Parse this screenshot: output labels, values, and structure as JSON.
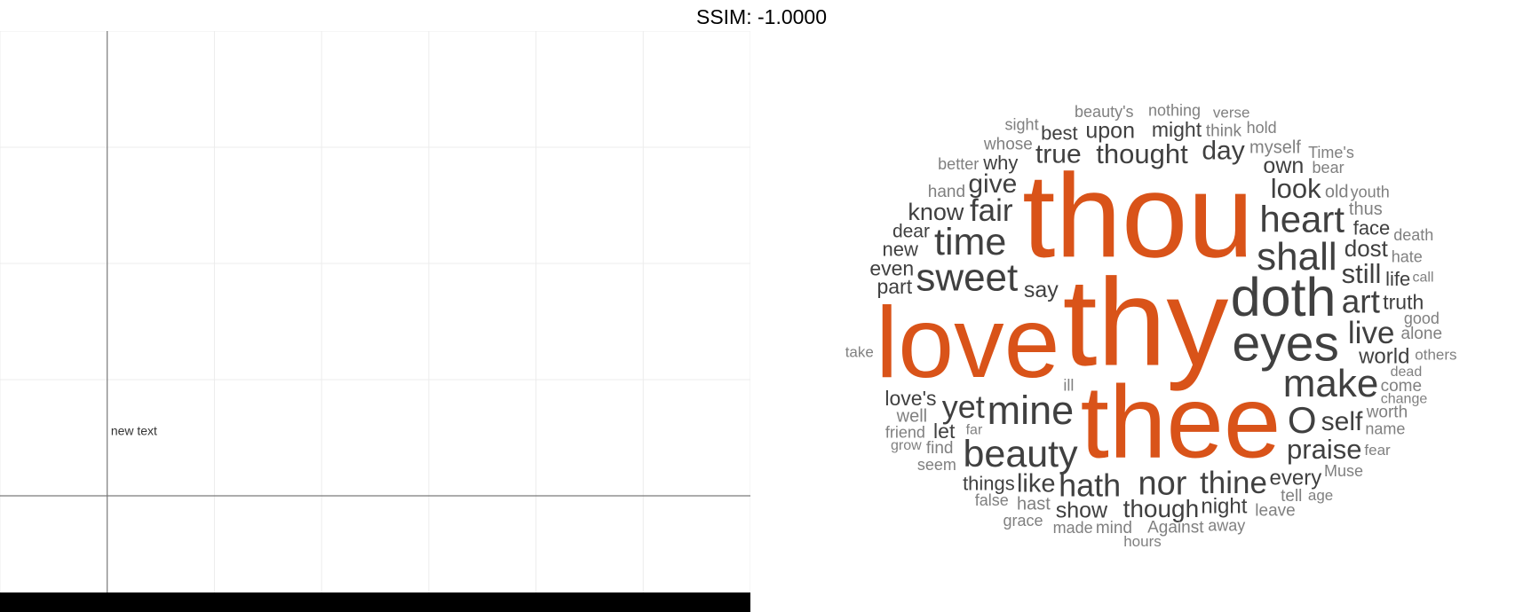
{
  "page": {
    "title": "SSIM: -1.0000"
  },
  "chart_data": [
    {
      "type": "scatter",
      "annotations": [
        {
          "text": "new text",
          "x": 0.25,
          "y": 0.55
        }
      ],
      "xlim": [
        -1,
        6
      ],
      "ylim": [
        -1,
        4
      ],
      "grid": true,
      "xlabel": "",
      "ylabel": ""
    },
    {
      "type": "wordcloud",
      "colors": {
        "highlight": "#D95319",
        "regular": "#404040",
        "muted": "#808080"
      },
      "words": [
        {
          "text": "thy",
          "weight": 1.0,
          "tier": "highlight"
        },
        {
          "text": "thou",
          "weight": 0.97,
          "tier": "highlight"
        },
        {
          "text": "thee",
          "weight": 0.88,
          "tier": "highlight"
        },
        {
          "text": "love",
          "weight": 0.86,
          "tier": "highlight"
        },
        {
          "text": "doth",
          "weight": 0.55,
          "tier": "regular"
        },
        {
          "text": "eyes",
          "weight": 0.52,
          "tier": "regular"
        },
        {
          "text": "mine",
          "weight": 0.43,
          "tier": "regular"
        },
        {
          "text": "sweet",
          "weight": 0.42,
          "tier": "regular"
        },
        {
          "text": "shall",
          "weight": 0.42,
          "tier": "regular"
        },
        {
          "text": "make",
          "weight": 0.42,
          "tier": "regular"
        },
        {
          "text": "beauty",
          "weight": 0.41,
          "tier": "regular"
        },
        {
          "text": "time",
          "weight": 0.41,
          "tier": "regular"
        },
        {
          "text": "heart",
          "weight": 0.4,
          "tier": "regular"
        },
        {
          "text": "O",
          "weight": 0.4,
          "tier": "regular"
        },
        {
          "text": "nor",
          "weight": 0.37,
          "tier": "regular"
        },
        {
          "text": "art",
          "weight": 0.36,
          "tier": "regular"
        },
        {
          "text": "hath",
          "weight": 0.35,
          "tier": "regular"
        },
        {
          "text": "yet",
          "weight": 0.35,
          "tier": "regular"
        },
        {
          "text": "thine",
          "weight": 0.34,
          "tier": "regular"
        },
        {
          "text": "fair",
          "weight": 0.34,
          "tier": "regular"
        },
        {
          "text": "live",
          "weight": 0.34,
          "tier": "regular"
        },
        {
          "text": "thought",
          "weight": 0.3,
          "tier": "regular"
        },
        {
          "text": "look",
          "weight": 0.3,
          "tier": "regular"
        },
        {
          "text": "praise",
          "weight": 0.3,
          "tier": "regular"
        },
        {
          "text": "still",
          "weight": 0.3,
          "tier": "regular"
        },
        {
          "text": "give",
          "weight": 0.29,
          "tier": "regular"
        },
        {
          "text": "self",
          "weight": 0.29,
          "tier": "regular"
        },
        {
          "text": "true",
          "weight": 0.29,
          "tier": "regular"
        },
        {
          "text": "day",
          "weight": 0.29,
          "tier": "regular"
        },
        {
          "text": "though",
          "weight": 0.27,
          "tier": "regular"
        },
        {
          "text": "like",
          "weight": 0.28,
          "tier": "regular"
        },
        {
          "text": "know",
          "weight": 0.26,
          "tier": "regular"
        },
        {
          "text": "dost",
          "weight": 0.25,
          "tier": "regular"
        },
        {
          "text": "show",
          "weight": 0.24,
          "tier": "regular"
        },
        {
          "text": "own",
          "weight": 0.24,
          "tier": "regular"
        },
        {
          "text": "upon",
          "weight": 0.24,
          "tier": "regular"
        },
        {
          "text": "say",
          "weight": 0.24,
          "tier": "regular"
        },
        {
          "text": "every",
          "weight": 0.23,
          "tier": "regular"
        },
        {
          "text": "world",
          "weight": 0.23,
          "tier": "regular"
        },
        {
          "text": "night",
          "weight": 0.23,
          "tier": "regular"
        },
        {
          "text": "might",
          "weight": 0.22,
          "tier": "regular"
        },
        {
          "text": "love's",
          "weight": 0.22,
          "tier": "regular"
        },
        {
          "text": "let",
          "weight": 0.22,
          "tier": "regular"
        },
        {
          "text": "part",
          "weight": 0.22,
          "tier": "regular"
        },
        {
          "text": "even",
          "weight": 0.21,
          "tier": "regular"
        },
        {
          "text": "truth",
          "weight": 0.21,
          "tier": "regular"
        },
        {
          "text": "things",
          "weight": 0.2,
          "tier": "regular"
        },
        {
          "text": "face",
          "weight": 0.2,
          "tier": "regular"
        },
        {
          "text": "new",
          "weight": 0.2,
          "tier": "regular"
        },
        {
          "text": "why",
          "weight": 0.2,
          "tier": "regular"
        },
        {
          "text": "best",
          "weight": 0.2,
          "tier": "regular"
        },
        {
          "text": "life",
          "weight": 0.2,
          "tier": "regular"
        },
        {
          "text": "dear",
          "weight": 0.19,
          "tier": "regular"
        },
        {
          "text": "myself",
          "weight": 0.18,
          "tier": "muted"
        },
        {
          "text": "old",
          "weight": 0.18,
          "tier": "muted"
        },
        {
          "text": "well",
          "weight": 0.18,
          "tier": "muted"
        },
        {
          "text": "hast",
          "weight": 0.18,
          "tier": "muted"
        },
        {
          "text": "thus",
          "weight": 0.17,
          "tier": "muted"
        },
        {
          "text": "hand",
          "weight": 0.16,
          "tier": "muted"
        },
        {
          "text": "think",
          "weight": 0.16,
          "tier": "muted"
        },
        {
          "text": "find",
          "weight": 0.16,
          "tier": "muted"
        },
        {
          "text": "come",
          "weight": 0.16,
          "tier": "muted"
        },
        {
          "text": "Against",
          "weight": 0.16,
          "tier": "muted"
        },
        {
          "text": "worth",
          "weight": 0.16,
          "tier": "muted"
        },
        {
          "text": "mind",
          "weight": 0.16,
          "tier": "muted"
        },
        {
          "text": "whose",
          "weight": 0.16,
          "tier": "muted"
        },
        {
          "text": "alone",
          "weight": 0.16,
          "tier": "muted"
        },
        {
          "text": "tell",
          "weight": 0.16,
          "tier": "muted"
        },
        {
          "text": "leave",
          "weight": 0.16,
          "tier": "muted"
        },
        {
          "text": "name",
          "weight": 0.15,
          "tier": "muted"
        },
        {
          "text": "bear",
          "weight": 0.15,
          "tier": "muted"
        },
        {
          "text": "made",
          "weight": 0.15,
          "tier": "muted"
        },
        {
          "text": "away",
          "weight": 0.15,
          "tier": "muted"
        },
        {
          "text": "false",
          "weight": 0.15,
          "tier": "muted"
        },
        {
          "text": "beauty's",
          "weight": 0.15,
          "tier": "muted"
        },
        {
          "text": "nothing",
          "weight": 0.15,
          "tier": "muted"
        },
        {
          "text": "better",
          "weight": 0.15,
          "tier": "muted"
        },
        {
          "text": "hold",
          "weight": 0.15,
          "tier": "muted"
        },
        {
          "text": "seem",
          "weight": 0.15,
          "tier": "muted"
        },
        {
          "text": "Muse",
          "weight": 0.14,
          "tier": "muted"
        },
        {
          "text": "hate",
          "weight": 0.14,
          "tier": "muted"
        },
        {
          "text": "grace",
          "weight": 0.14,
          "tier": "muted"
        },
        {
          "text": "friend",
          "weight": 0.14,
          "tier": "muted"
        },
        {
          "text": "good",
          "weight": 0.14,
          "tier": "muted"
        },
        {
          "text": "youth",
          "weight": 0.14,
          "tier": "muted"
        },
        {
          "text": "sight",
          "weight": 0.14,
          "tier": "muted"
        },
        {
          "text": "death",
          "weight": 0.14,
          "tier": "muted"
        },
        {
          "text": "Time's",
          "weight": 0.14,
          "tier": "muted"
        },
        {
          "text": "ill",
          "weight": 0.14,
          "tier": "muted"
        },
        {
          "text": "hours",
          "weight": 0.13,
          "tier": "muted"
        },
        {
          "text": "others",
          "weight": 0.13,
          "tier": "muted"
        },
        {
          "text": "age",
          "weight": 0.13,
          "tier": "muted"
        },
        {
          "text": "fear",
          "weight": 0.13,
          "tier": "muted"
        },
        {
          "text": "verse",
          "weight": 0.13,
          "tier": "muted"
        },
        {
          "text": "take",
          "weight": 0.13,
          "tier": "muted"
        },
        {
          "text": "change",
          "weight": 0.12,
          "tier": "muted"
        },
        {
          "text": "dead",
          "weight": 0.12,
          "tier": "muted"
        },
        {
          "text": "far",
          "weight": 0.12,
          "tier": "muted"
        },
        {
          "text": "call",
          "weight": 0.11,
          "tier": "muted"
        },
        {
          "text": "grow",
          "weight": 0.11,
          "tier": "muted"
        }
      ]
    }
  ]
}
